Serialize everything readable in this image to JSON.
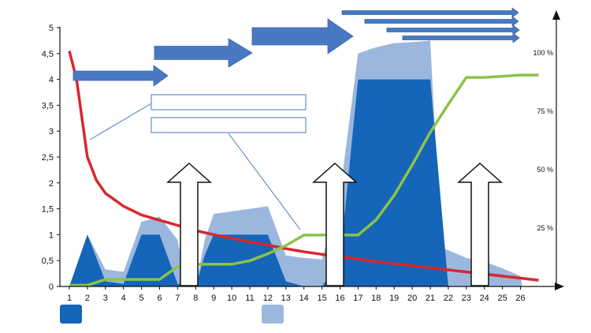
{
  "chart_data": {
    "type": "area",
    "title": "",
    "xlabel": "",
    "ylabel": "",
    "x": [
      1,
      2,
      3,
      4,
      5,
      6,
      7,
      8,
      9,
      10,
      11,
      12,
      13,
      14,
      15,
      16,
      17,
      18,
      19,
      20,
      21,
      22,
      23,
      24,
      25,
      26
    ],
    "x_tick_labels": [
      "1",
      "2",
      "3",
      "4",
      "5",
      "6",
      "7",
      "8",
      "9",
      "10",
      "11",
      "12",
      "13",
      "14",
      "15",
      "16",
      "17",
      "18",
      "19",
      "20",
      "21",
      "22",
      "23",
      "24",
      "25",
      "26"
    ],
    "ylim": [
      0,
      5
    ],
    "y_tick_labels": [
      "0",
      "0,5",
      "1",
      "1,5",
      "2",
      "2,5",
      "3",
      "3,5",
      "4",
      "4,5",
      "5"
    ],
    "y2lim": [
      0,
      100
    ],
    "y2_tick_labels": [
      "25 %",
      "50 %",
      "75 %",
      "100 %"
    ],
    "grid": false,
    "series": [
      {
        "kind": "area",
        "color": "#9bb7de",
        "points": [
          [
            1,
            0
          ],
          [
            2,
            1.0
          ],
          [
            3,
            0.33
          ],
          [
            4,
            0.28
          ],
          [
            5,
            1.25
          ],
          [
            6,
            1.35
          ],
          [
            7,
            0.9
          ],
          [
            7.5,
            0
          ],
          [
            8,
            0
          ],
          [
            8.5,
            0.9
          ],
          [
            9,
            1.4
          ],
          [
            10,
            1.45
          ],
          [
            11,
            1.5
          ],
          [
            12,
            1.55
          ],
          [
            13,
            0.6
          ],
          [
            14,
            0.55
          ],
          [
            15,
            0.52
          ],
          [
            16,
            1.8
          ],
          [
            17,
            4.5
          ],
          [
            18,
            4.62
          ],
          [
            19,
            4.7
          ],
          [
            20,
            4.72
          ],
          [
            21,
            4.75
          ],
          [
            21.6,
            0.75
          ],
          [
            22,
            0.7
          ],
          [
            23,
            0.55
          ],
          [
            24,
            0.48
          ],
          [
            25,
            0.35
          ],
          [
            26,
            0.2
          ],
          [
            26.1,
            0
          ]
        ]
      },
      {
        "kind": "area",
        "color": "#1565b8",
        "points": [
          [
            1,
            0
          ],
          [
            2,
            1.0
          ],
          [
            3,
            0.1
          ],
          [
            4,
            0.05
          ],
          [
            5,
            1.0
          ],
          [
            6,
            1.0
          ],
          [
            7,
            0.05
          ],
          [
            8,
            0
          ],
          [
            8.5,
            0.6
          ],
          [
            9,
            1.0
          ],
          [
            10,
            1.0
          ],
          [
            11,
            1.0
          ],
          [
            12,
            1.0
          ],
          [
            13,
            0.1
          ],
          [
            14,
            0
          ],
          [
            15,
            0
          ],
          [
            16,
            0.5
          ],
          [
            17,
            4.0
          ],
          [
            18,
            4.0
          ],
          [
            19,
            4.0
          ],
          [
            20,
            4.0
          ],
          [
            21,
            4.0
          ],
          [
            22,
            0
          ],
          [
            26,
            0
          ]
        ]
      },
      {
        "kind": "line",
        "color": "#d7282d",
        "points": [
          [
            1,
            4.55
          ],
          [
            1.4,
            4.0
          ],
          [
            2,
            2.5
          ],
          [
            2.5,
            2.05
          ],
          [
            3,
            1.8
          ],
          [
            4,
            1.55
          ],
          [
            5,
            1.38
          ],
          [
            6,
            1.28
          ],
          [
            7,
            1.18
          ],
          [
            8,
            1.08
          ],
          [
            9,
            1.0
          ],
          [
            10,
            0.93
          ],
          [
            11,
            0.86
          ],
          [
            12,
            0.8
          ],
          [
            13,
            0.73
          ],
          [
            14,
            0.67
          ],
          [
            15,
            0.62
          ],
          [
            16,
            0.58
          ],
          [
            17,
            0.53
          ],
          [
            18,
            0.48
          ],
          [
            19,
            0.44
          ],
          [
            20,
            0.4
          ],
          [
            21,
            0.36
          ],
          [
            22,
            0.32
          ],
          [
            23,
            0.28
          ],
          [
            24,
            0.24
          ],
          [
            25,
            0.2
          ],
          [
            26,
            0.16
          ],
          [
            27,
            0.12
          ]
        ]
      },
      {
        "kind": "line",
        "color": "#8bc34a",
        "axis": "right",
        "points": [
          [
            1,
            0.5
          ],
          [
            2,
            0.5
          ],
          [
            3,
            3
          ],
          [
            4,
            3
          ],
          [
            5,
            3
          ],
          [
            6,
            3
          ],
          [
            7,
            8.5
          ],
          [
            8,
            9.5
          ],
          [
            9,
            9.5
          ],
          [
            10,
            9.5
          ],
          [
            11,
            11
          ],
          [
            12,
            14
          ],
          [
            13,
            17.5
          ],
          [
            14,
            22
          ],
          [
            15,
            22
          ],
          [
            16,
            22
          ],
          [
            17,
            22
          ],
          [
            18,
            28.5
          ],
          [
            19,
            39
          ],
          [
            20,
            52
          ],
          [
            21,
            66
          ],
          [
            22,
            78
          ],
          [
            23,
            89.5
          ],
          [
            24,
            89.5
          ],
          [
            25,
            90
          ],
          [
            26,
            90.5
          ],
          [
            27,
            90.5
          ]
        ]
      }
    ],
    "legend": [
      {
        "color": "#1565b8",
        "label": ""
      },
      {
        "color": "#9bb7de",
        "label": ""
      }
    ]
  },
  "overlays": {
    "arrow_color": "#4a79c3",
    "text_boxes": [
      {
        "text": ""
      },
      {
        "text": ""
      }
    ]
  }
}
